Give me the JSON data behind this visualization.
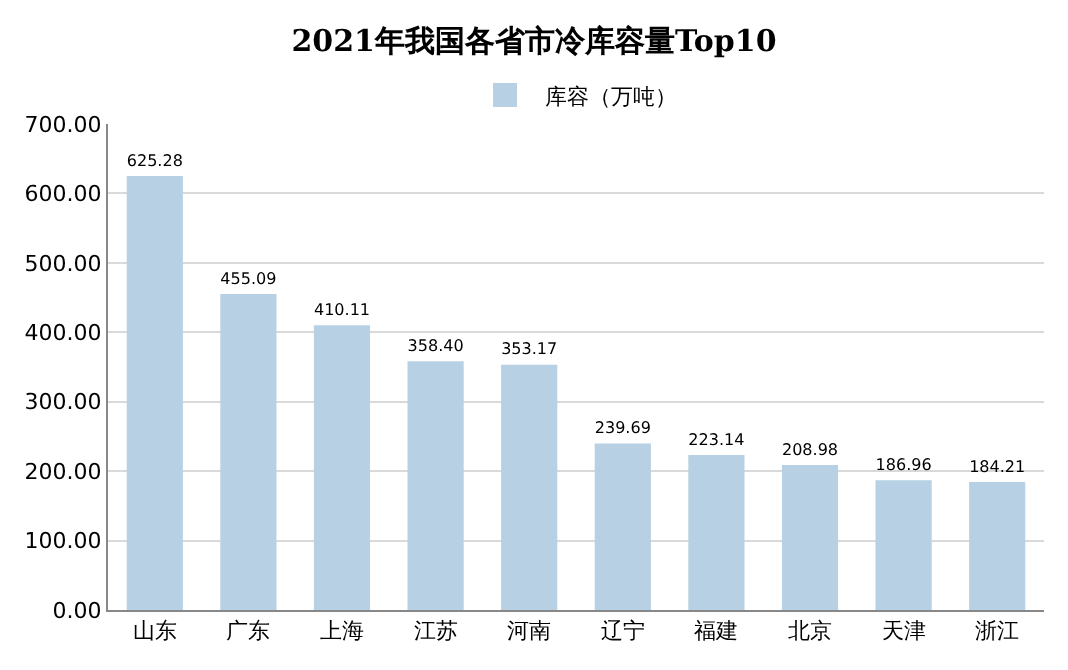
{
  "chart_data": {
    "type": "bar",
    "title": "2021年我国各省市冷库容量Top10",
    "categories": [
      "山东",
      "广东",
      "上海",
      "江苏",
      "河南",
      "辽宁",
      "福建",
      "北京",
      "天津",
      "浙江"
    ],
    "series": [
      {
        "name": "库容（万吨）",
        "color": "#b7d0e3",
        "values": [
          625.28,
          455.09,
          410.11,
          358.4,
          353.17,
          239.69,
          223.14,
          208.98,
          186.96,
          184.21
        ],
        "value_labels": [
          "625.28",
          "455.09",
          "410.11",
          "358.40",
          "353.17",
          "239.69",
          "223.14",
          "208.98",
          "186.96",
          "184.21"
        ]
      }
    ],
    "ylim": [
      0,
      700
    ],
    "yticks": [
      {
        "value": 0,
        "label": "0.00"
      },
      {
        "value": 100,
        "label": "100.00"
      },
      {
        "value": 200,
        "label": "200.00"
      },
      {
        "value": 300,
        "label": "300.00"
      },
      {
        "value": 400,
        "label": "400.00"
      },
      {
        "value": 500,
        "label": "500.00"
      },
      {
        "value": 600,
        "label": "600.00"
      },
      {
        "value": 700,
        "label": "700.00"
      }
    ],
    "grid": "y",
    "legend": "top"
  }
}
